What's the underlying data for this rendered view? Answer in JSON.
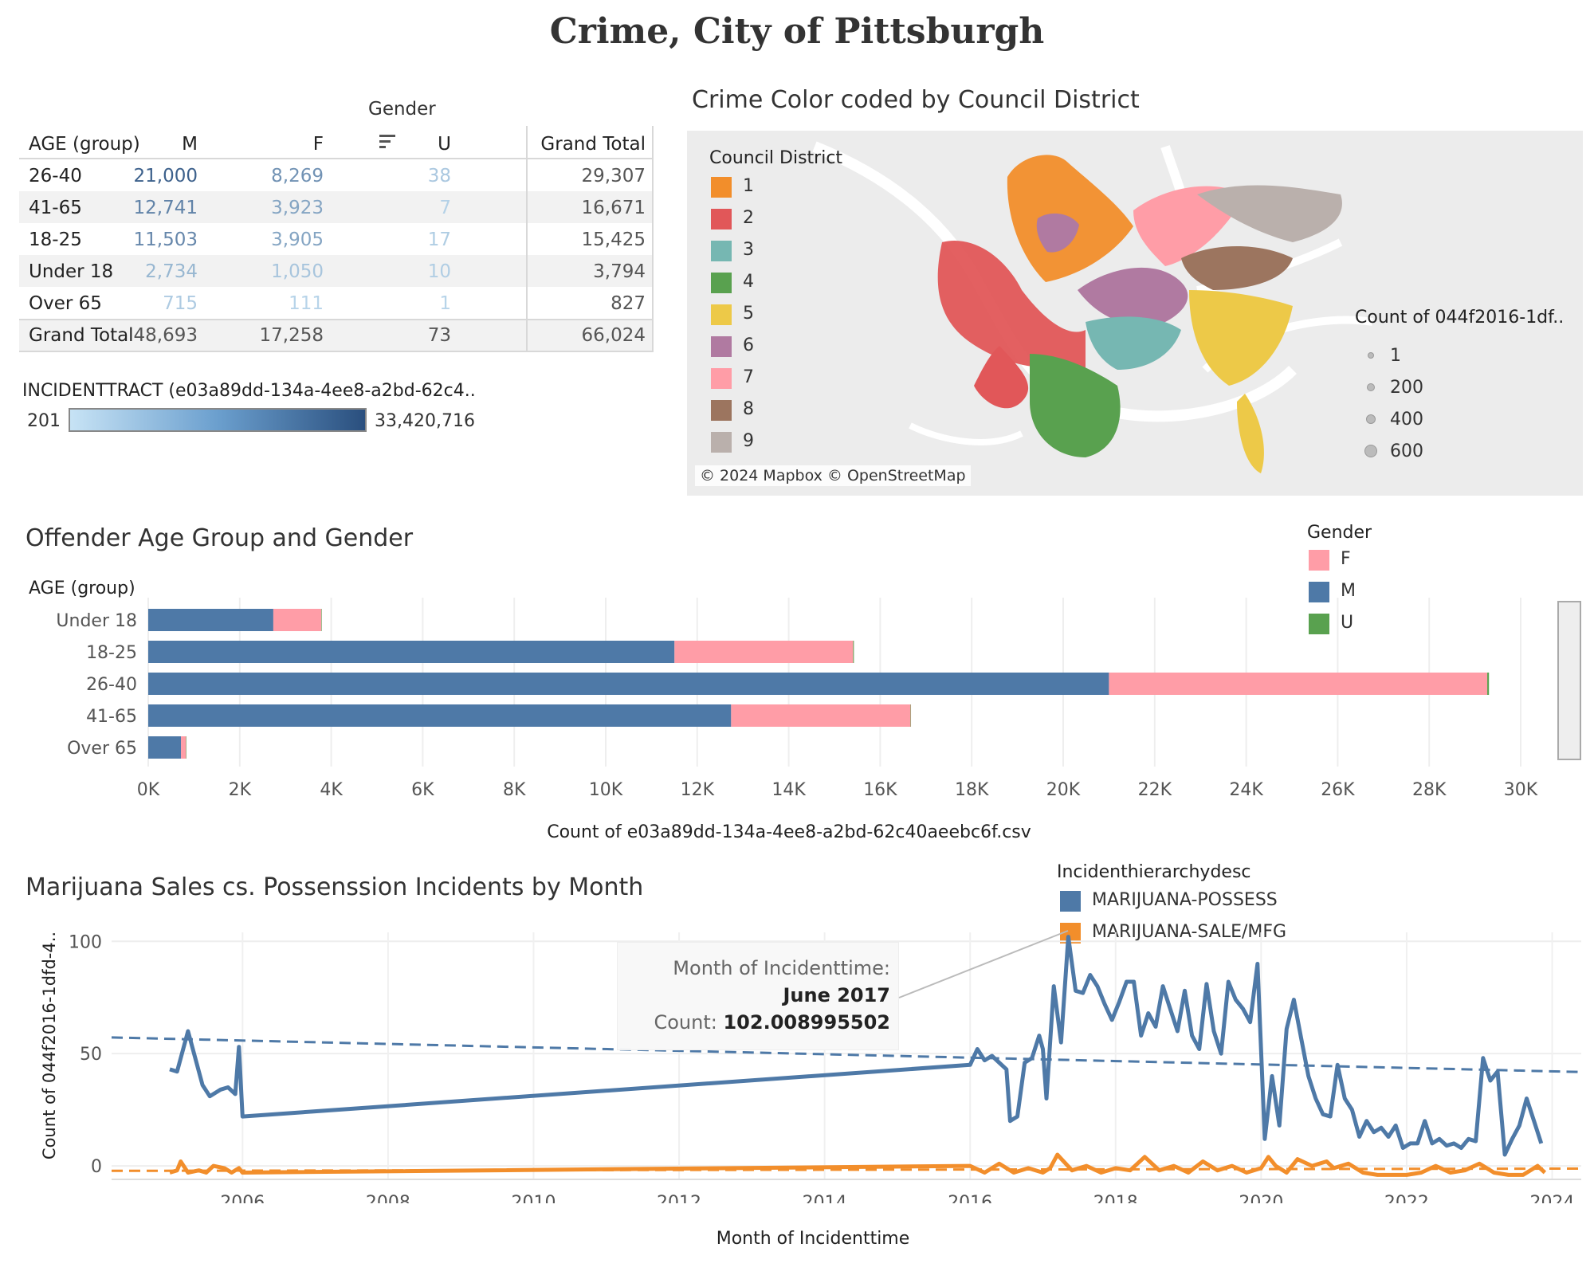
{
  "title": "Crime, City of Pittsburgh",
  "crosstab": {
    "column_group": "Gender",
    "headers": [
      "AGE (group)",
      "M",
      "F",
      "U",
      "Grand Total"
    ],
    "rows": [
      {
        "age": "26-40",
        "m": "21,000",
        "f": "8,269",
        "u": "38",
        "gt": "29,307"
      },
      {
        "age": "41-65",
        "m": "12,741",
        "f": "3,923",
        "u": "7",
        "gt": "16,671"
      },
      {
        "age": "18-25",
        "m": "11,503",
        "f": "3,905",
        "u": "17",
        "gt": "15,425"
      },
      {
        "age": "Under 18",
        "m": "2,734",
        "f": "1,050",
        "u": "10",
        "gt": "3,794"
      },
      {
        "age": "Over 65",
        "m": "715",
        "f": "111",
        "u": "1",
        "gt": "827"
      }
    ],
    "total": {
      "age": "Grand Total",
      "m": "48,693",
      "f": "17,258",
      "u": "73",
      "gt": "66,024"
    },
    "cell_shades": [
      {
        "m": 0.88,
        "f": 0.55,
        "u": 0.18
      },
      {
        "m": 0.65,
        "f": 0.42,
        "u": 0.12
      },
      {
        "m": 0.62,
        "f": 0.42,
        "u": 0.15
      },
      {
        "m": 0.3,
        "f": 0.2,
        "u": 0.14
      },
      {
        "m": 0.16,
        "f": 0.1,
        "u": 0.1
      }
    ],
    "color_legend": {
      "title": "INCIDENTTRACT (e03a89dd-134a-4ee8-a2bd-62c4..",
      "min": "201",
      "max": "33,420,716"
    }
  },
  "map": {
    "title": "Crime Color coded by Council District",
    "legend_title": "Council District",
    "districts": [
      {
        "label": "1",
        "color": "#f28e2b"
      },
      {
        "label": "2",
        "color": "#e15759"
      },
      {
        "label": "3",
        "color": "#76b7b2"
      },
      {
        "label": "4",
        "color": "#59a14f"
      },
      {
        "label": "5",
        "color": "#edc948"
      },
      {
        "label": "6",
        "color": "#b07aa1"
      },
      {
        "label": "7",
        "color": "#ff9da7"
      },
      {
        "label": "8",
        "color": "#9c755f"
      },
      {
        "label": "9",
        "color": "#bab0ac"
      }
    ],
    "size_legend_title": "Count of 044f2016-1df..",
    "size_legend": [
      "1",
      "200",
      "400",
      "600"
    ],
    "attribution": "© 2024 Mapbox © OpenStreetMap"
  },
  "bar_legend": {
    "title": "Gender",
    "items": [
      {
        "label": "F",
        "color": "#ff9da7"
      },
      {
        "label": "M",
        "color": "#4e79a7"
      },
      {
        "label": "U",
        "color": "#59a14f"
      }
    ]
  },
  "line_legend": {
    "title": "Incidenthierarchydesc",
    "items": [
      {
        "label": "MARIJUANA-POSSESS",
        "color": "#4e79a7"
      },
      {
        "label": "MARIJUANA-SALE/MFG",
        "color": "#f28e2b"
      }
    ]
  },
  "tooltip": {
    "label1": "Month of Incidenttime:",
    "value1": "June 2017",
    "label2": "Count:",
    "value2": "102.008995502"
  },
  "chart_data": [
    {
      "type": "bar",
      "title": "Offender Age Group and Gender",
      "ylabel": "AGE (group)",
      "xlabel": "Count of e03a89dd-134a-4ee8-a2bd-62c40aeebc6f.csv",
      "categories": [
        "Under 18",
        "18-25",
        "26-40",
        "41-65",
        "Over 65"
      ],
      "stacked": true,
      "series": [
        {
          "name": "M",
          "values": [
            2734,
            11503,
            21000,
            12741,
            715
          ]
        },
        {
          "name": "F",
          "values": [
            1050,
            3905,
            8269,
            3923,
            111
          ]
        },
        {
          "name": "U",
          "values": [
            10,
            17,
            38,
            7,
            1
          ]
        }
      ],
      "xlim": [
        0,
        30000
      ],
      "xticks": [
        "0K",
        "2K",
        "4K",
        "6K",
        "8K",
        "10K",
        "12K",
        "14K",
        "16K",
        "18K",
        "20K",
        "22K",
        "24K",
        "26K",
        "28K",
        "30K"
      ],
      "legend": "top-right"
    },
    {
      "type": "line",
      "title": "Marijuana Sales cs. Possenssion Incidents by Month",
      "xlabel": "Month of Incidenttime",
      "ylabel": "Count of 044f2016-1dfd-4..",
      "xlim": [
        2004.2,
        2024.4
      ],
      "ylim": [
        -6,
        104
      ],
      "yticks": [
        "0",
        "50",
        "100"
      ],
      "xticks": [
        "2006",
        "2008",
        "2010",
        "2012",
        "2014",
        "2016",
        "2018",
        "2020",
        "2022",
        "2024"
      ],
      "series": [
        {
          "name": "MARIJUANA-POSSESS",
          "x": [
            2005.0,
            2005.1,
            2005.25,
            2005.35,
            2005.45,
            2005.55,
            2005.7,
            2005.8,
            2005.9,
            2005.95,
            2006.0,
            2016.0,
            2016.1,
            2016.2,
            2016.3,
            2016.4,
            2016.5,
            2016.55,
            2016.65,
            2016.75,
            2016.85,
            2016.95,
            2017.0,
            2017.05,
            2017.15,
            2017.25,
            2017.35,
            2017.45,
            2017.55,
            2017.65,
            2017.75,
            2017.85,
            2017.95,
            2018.05,
            2018.15,
            2018.25,
            2018.35,
            2018.45,
            2018.55,
            2018.65,
            2018.75,
            2018.85,
            2018.95,
            2019.05,
            2019.15,
            2019.25,
            2019.35,
            2019.45,
            2019.55,
            2019.65,
            2019.75,
            2019.85,
            2019.95,
            2020.05,
            2020.15,
            2020.25,
            2020.35,
            2020.45,
            2020.55,
            2020.65,
            2020.75,
            2020.85,
            2020.95,
            2021.05,
            2021.15,
            2021.25,
            2021.35,
            2021.45,
            2021.55,
            2021.65,
            2021.75,
            2021.85,
            2021.95,
            2022.05,
            2022.15,
            2022.25,
            2022.35,
            2022.45,
            2022.55,
            2022.65,
            2022.75,
            2022.85,
            2022.95,
            2023.05,
            2023.15,
            2023.25,
            2023.35,
            2023.45,
            2023.55,
            2023.65,
            2023.75,
            2023.85
          ],
          "y": [
            43,
            42,
            60,
            48,
            36,
            31,
            34,
            35,
            32,
            53,
            22,
            45,
            52,
            47,
            49,
            46,
            43,
            20,
            22,
            46,
            48,
            58,
            52,
            30,
            80,
            55,
            102,
            78,
            77,
            85,
            80,
            72,
            65,
            73,
            82,
            82,
            58,
            68,
            62,
            80,
            70,
            60,
            78,
            58,
            52,
            81,
            60,
            50,
            82,
            74,
            70,
            64,
            90,
            12,
            40,
            18,
            61,
            74,
            57,
            40,
            30,
            23,
            22,
            45,
            30,
            25,
            13,
            20,
            15,
            17,
            13,
            18,
            8,
            10,
            10,
            20,
            10,
            12,
            9,
            10,
            8,
            12,
            11,
            48,
            38,
            42,
            5,
            12,
            18,
            30,
            20,
            10
          ]
        },
        {
          "name": "MARIJUANA-SALE/MFG",
          "x": [
            2005.0,
            2005.1,
            2005.15,
            2005.25,
            2005.4,
            2005.5,
            2005.6,
            2005.75,
            2005.85,
            2005.95,
            2006.0,
            2016.0,
            2016.2,
            2016.4,
            2016.6,
            2016.8,
            2017.0,
            2017.1,
            2017.2,
            2017.4,
            2017.6,
            2017.8,
            2018.0,
            2018.2,
            2018.4,
            2018.6,
            2018.8,
            2019.0,
            2019.2,
            2019.4,
            2019.6,
            2019.8,
            2020.0,
            2020.1,
            2020.2,
            2020.35,
            2020.5,
            2020.7,
            2020.9,
            2021.0,
            2021.2,
            2021.4,
            2021.6,
            2021.8,
            2022.0,
            2022.2,
            2022.4,
            2022.6,
            2022.8,
            2023.0,
            2023.2,
            2023.4,
            2023.6,
            2023.8,
            2023.9
          ],
          "y": [
            -3,
            -2,
            2,
            -3,
            -2,
            -3,
            0,
            -1,
            -3,
            -1,
            -3,
            0,
            -3,
            1,
            -3,
            -1,
            -3,
            -1,
            5,
            -2,
            0,
            -3,
            -1,
            -2,
            4,
            -2,
            0,
            -3,
            2,
            -2,
            0,
            -3,
            -1,
            4,
            0,
            -3,
            3,
            0,
            2,
            -1,
            1,
            -3,
            -4,
            -4,
            -4,
            -3,
            0,
            -3,
            -2,
            1,
            -3,
            -4,
            -4,
            0,
            -3
          ]
        }
      ],
      "trendlines": [
        {
          "series": "MARIJUANA-POSSESS",
          "x": [
            2004.2,
            2024.4
          ],
          "y": [
            57.2,
            41.8
          ],
          "style": "dashed"
        },
        {
          "series": "MARIJUANA-SALE/MFG",
          "x": [
            2004.2,
            2024.4
          ],
          "y": [
            -2.2,
            -1.2
          ],
          "style": "dashed"
        }
      ],
      "legend": "top-center"
    }
  ]
}
